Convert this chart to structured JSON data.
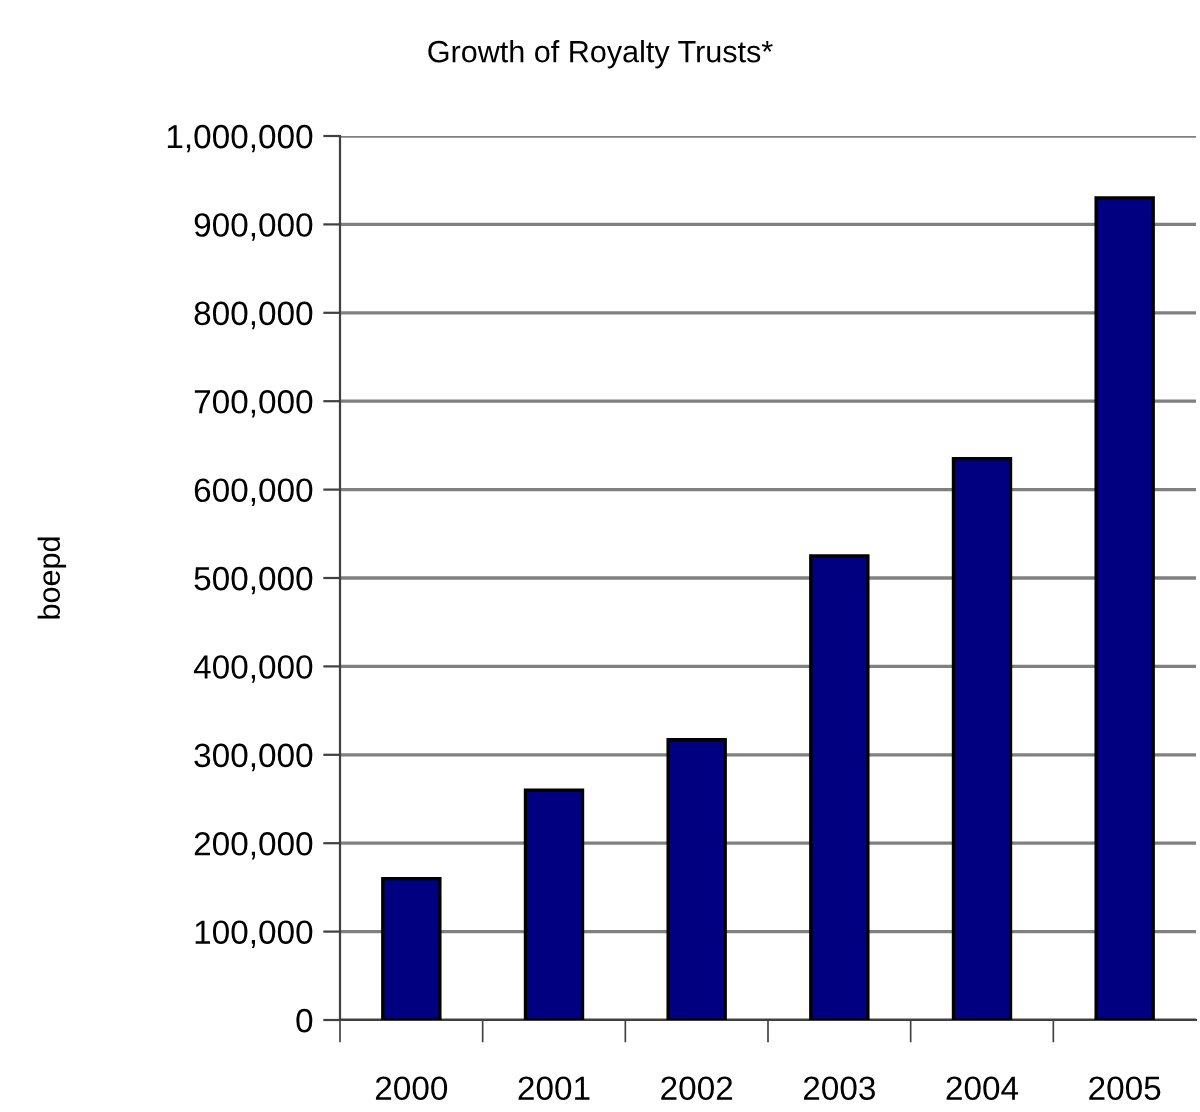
{
  "chart_data": {
    "type": "bar",
    "title": "Growth of Royalty Trusts*",
    "ylabel": "boepd",
    "categories": [
      "2000",
      "2001",
      "2002",
      "2003",
      "2004",
      "2005"
    ],
    "values": [
      160000,
      260000,
      317000,
      525000,
      635000,
      930000
    ],
    "color": "#000080",
    "ylim": [
      0,
      1000000
    ],
    "yticks": [
      {
        "value": 0,
        "label": "0"
      },
      {
        "value": 100000,
        "label": "100,000"
      },
      {
        "value": 200000,
        "label": "200,000"
      },
      {
        "value": 300000,
        "label": "300,000"
      },
      {
        "value": 400000,
        "label": "400,000"
      },
      {
        "value": 500000,
        "label": "500,000"
      },
      {
        "value": 600000,
        "label": "600,000"
      },
      {
        "value": 700000,
        "label": "700,000"
      },
      {
        "value": 800000,
        "label": "800,000"
      },
      {
        "value": 900000,
        "label": "900,000"
      },
      {
        "value": 1000000,
        "label": "1,000,000"
      }
    ],
    "grid": "y"
  }
}
